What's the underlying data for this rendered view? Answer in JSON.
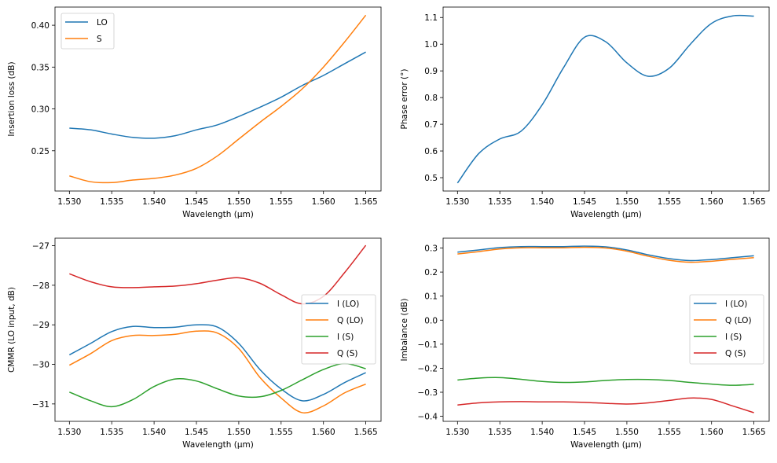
{
  "chart_data": [
    {
      "type": "line",
      "xlabel": "Wavelength (µm)",
      "ylabel": "Insertion loss (dB)",
      "xlim": [
        1.5283,
        1.5668
      ],
      "ylim": [
        0.2019,
        0.4217
      ],
      "xticks": [
        "1.530",
        "1.535",
        "1.540",
        "1.545",
        "1.550",
        "1.555",
        "1.560",
        "1.565"
      ],
      "yticks": [
        "0.25",
        "0.30",
        "0.35",
        "0.40"
      ],
      "legend": "upper-left",
      "x": [
        1.53,
        1.5325,
        1.535,
        1.5375,
        1.54,
        1.5425,
        1.545,
        1.5475,
        1.55,
        1.5525,
        1.555,
        1.5575,
        1.56,
        1.5625,
        1.565
      ],
      "series": [
        {
          "name": "LO",
          "color": "#1f77b4",
          "values": [
            0.277,
            0.275,
            0.27,
            0.266,
            0.265,
            0.268,
            0.275,
            0.281,
            0.291,
            0.302,
            0.314,
            0.328,
            0.34,
            0.354,
            0.368
          ]
        },
        {
          "name": "S",
          "color": "#ff7f0e",
          "values": [
            0.22,
            0.213,
            0.212,
            0.215,
            0.217,
            0.221,
            0.229,
            0.244,
            0.264,
            0.284,
            0.303,
            0.324,
            0.35,
            0.38,
            0.412
          ]
        }
      ]
    },
    {
      "type": "line",
      "xlabel": "Wavelength (µm)",
      "ylabel": "Phase error (°)",
      "xlim": [
        1.5283,
        1.5668
      ],
      "ylim": [
        0.45,
        1.139
      ],
      "xticks": [
        "1.530",
        "1.535",
        "1.540",
        "1.545",
        "1.550",
        "1.555",
        "1.560",
        "1.565"
      ],
      "yticks": [
        "0.5",
        "0.6",
        "0.7",
        "0.8",
        "0.9",
        "1.0",
        "1.1"
      ],
      "x": [
        1.53,
        1.5325,
        1.535,
        1.5375,
        1.54,
        1.5425,
        1.545,
        1.5475,
        1.55,
        1.5525,
        1.555,
        1.5575,
        1.56,
        1.5625,
        1.565
      ],
      "series": [
        {
          "color": "#1f77b4",
          "values": [
            0.48,
            0.59,
            0.645,
            0.674,
            0.773,
            0.911,
            1.026,
            1.009,
            0.93,
            0.88,
            0.91,
            1.0,
            1.078,
            1.106,
            1.105
          ]
        }
      ]
    },
    {
      "type": "line",
      "xlabel": "Wavelength (µm)",
      "ylabel": "CMMR (LO input, dB)",
      "xlim": [
        1.5283,
        1.5668
      ],
      "ylim": [
        -31.44,
        -26.81
      ],
      "xticks": [
        "1.530",
        "1.535",
        "1.540",
        "1.545",
        "1.550",
        "1.555",
        "1.560",
        "1.565"
      ],
      "yticks": [
        "−31",
        "−30",
        "−29",
        "−28",
        "−27"
      ],
      "legend": "center-right",
      "x": [
        1.53,
        1.5325,
        1.535,
        1.5375,
        1.54,
        1.5425,
        1.545,
        1.5475,
        1.55,
        1.5525,
        1.555,
        1.5575,
        1.56,
        1.5625,
        1.565
      ],
      "series": [
        {
          "name": "I (LO)",
          "color": "#1f77b4",
          "values": [
            -29.76,
            -29.47,
            -29.17,
            -29.04,
            -29.07,
            -29.06,
            -29.0,
            -29.06,
            -29.47,
            -30.13,
            -30.62,
            -30.92,
            -30.76,
            -30.46,
            -30.21
          ]
        },
        {
          "name": "Q (LO)",
          "color": "#ff7f0e",
          "values": [
            -30.02,
            -29.73,
            -29.4,
            -29.27,
            -29.27,
            -29.24,
            -29.16,
            -29.21,
            -29.6,
            -30.33,
            -30.85,
            -31.22,
            -31.05,
            -30.72,
            -30.5
          ]
        },
        {
          "name": "I (S)",
          "color": "#2ca02c",
          "values": [
            -30.7,
            -30.92,
            -31.07,
            -30.89,
            -30.56,
            -30.37,
            -30.42,
            -30.62,
            -30.8,
            -30.82,
            -30.66,
            -30.39,
            -30.13,
            -29.98,
            -30.11
          ]
        },
        {
          "name": "Q (S)",
          "color": "#d62728",
          "values": [
            -27.71,
            -27.91,
            -28.04,
            -28.06,
            -28.04,
            -28.02,
            -27.96,
            -27.87,
            -27.81,
            -27.95,
            -28.24,
            -28.47,
            -28.28,
            -27.68,
            -26.99
          ]
        }
      ]
    },
    {
      "type": "line",
      "xlabel": "Wavelength (µm)",
      "ylabel": "Imbalance (dB)",
      "xlim": [
        1.5283,
        1.5668
      ],
      "ylim": [
        -0.421,
        0.341
      ],
      "xticks": [
        "1.530",
        "1.535",
        "1.540",
        "1.545",
        "1.550",
        "1.555",
        "1.560",
        "1.565"
      ],
      "yticks": [
        "−0.4",
        "−0.3",
        "−0.2",
        "−0.1",
        "0.0",
        "0.1",
        "0.2",
        "0.3"
      ],
      "legend": "center-right",
      "x": [
        1.53,
        1.5325,
        1.535,
        1.5375,
        1.54,
        1.5425,
        1.545,
        1.5475,
        1.55,
        1.5525,
        1.555,
        1.5575,
        1.56,
        1.5625,
        1.565
      ],
      "series": [
        {
          "name": "I (LO)",
          "color": "#1f77b4",
          "values": [
            0.283,
            0.292,
            0.302,
            0.306,
            0.306,
            0.306,
            0.308,
            0.305,
            0.292,
            0.272,
            0.256,
            0.248,
            0.252,
            0.26,
            0.268
          ]
        },
        {
          "name": "Q (LO)",
          "color": "#ff7f0e",
          "values": [
            0.275,
            0.285,
            0.296,
            0.301,
            0.301,
            0.301,
            0.303,
            0.3,
            0.287,
            0.266,
            0.249,
            0.241,
            0.245,
            0.253,
            0.26
          ]
        },
        {
          "name": "I (S)",
          "color": "#2ca02c",
          "values": [
            -0.249,
            -0.241,
            -0.239,
            -0.246,
            -0.255,
            -0.259,
            -0.257,
            -0.251,
            -0.247,
            -0.247,
            -0.251,
            -0.259,
            -0.266,
            -0.271,
            -0.267
          ]
        },
        {
          "name": "Q (S)",
          "color": "#d62728",
          "values": [
            -0.353,
            -0.344,
            -0.34,
            -0.339,
            -0.34,
            -0.34,
            -0.342,
            -0.346,
            -0.349,
            -0.344,
            -0.334,
            -0.324,
            -0.33,
            -0.357,
            -0.385
          ]
        }
      ]
    }
  ]
}
